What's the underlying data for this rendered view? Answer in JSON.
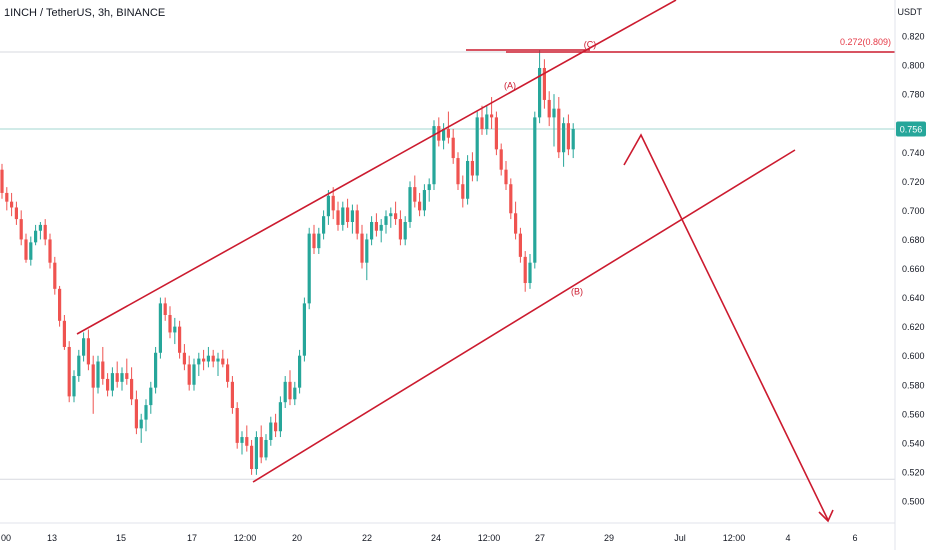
{
  "header": {
    "symbol_title": "1INCH / TetherUS, 3h, BINANCE",
    "currency": "USDT"
  },
  "colors": {
    "up": "#26a69a",
    "down": "#ef5350",
    "drawing": "#cc1b2f",
    "fib_level": "#e53946",
    "price_tag_bg": "#26a69a",
    "grid_hline": "#d7d9df"
  },
  "chart_data": {
    "type": "candlestick",
    "ylim": [
      0.49,
      0.83
    ],
    "y_ticks": [
      "0.820",
      "0.800",
      "0.780",
      "0.760",
      "0.740",
      "0.720",
      "0.700",
      "0.680",
      "0.660",
      "0.640",
      "0.620",
      "0.600",
      "0.580",
      "0.560",
      "0.540",
      "0.520",
      "0.500"
    ],
    "x_ticks": [
      "00",
      "13",
      "15",
      "17",
      "12:00",
      "20",
      "22",
      "24",
      "12:00",
      "27",
      "29",
      "Jul",
      "12:00",
      "4",
      "6"
    ],
    "last_price": 0.756,
    "last_price_label": "0.756",
    "fib_level_label": "0.272(0.809)",
    "fib_level_value": 0.809,
    "support_level_value": 0.515,
    "wave_labels": [
      {
        "text": "(A)",
        "value": 0.784
      },
      {
        "text": "(B)",
        "value": 0.642
      },
      {
        "text": "(C)",
        "value": 0.812
      }
    ],
    "ohlc": [
      [
        0.728,
        0.732,
        0.708,
        0.712
      ],
      [
        0.712,
        0.716,
        0.7,
        0.706
      ],
      [
        0.706,
        0.712,
        0.696,
        0.702
      ],
      [
        0.702,
        0.706,
        0.69,
        0.694
      ],
      [
        0.694,
        0.7,
        0.676,
        0.68
      ],
      [
        0.68,
        0.684,
        0.664,
        0.666
      ],
      [
        0.666,
        0.682,
        0.662,
        0.678
      ],
      [
        0.678,
        0.69,
        0.676,
        0.686
      ],
      [
        0.686,
        0.692,
        0.68,
        0.69
      ],
      [
        0.69,
        0.694,
        0.676,
        0.68
      ],
      [
        0.68,
        0.684,
        0.66,
        0.664
      ],
      [
        0.664,
        0.668,
        0.642,
        0.646
      ],
      [
        0.646,
        0.648,
        0.62,
        0.624
      ],
      [
        0.624,
        0.628,
        0.604,
        0.606
      ],
      [
        0.606,
        0.61,
        0.568,
        0.572
      ],
      [
        0.572,
        0.59,
        0.568,
        0.586
      ],
      [
        0.586,
        0.604,
        0.582,
        0.6
      ],
      [
        0.6,
        0.616,
        0.596,
        0.612
      ],
      [
        0.612,
        0.618,
        0.59,
        0.594
      ],
      [
        0.594,
        0.6,
        0.56,
        0.578
      ],
      [
        0.578,
        0.6,
        0.574,
        0.596
      ],
      [
        0.596,
        0.606,
        0.58,
        0.584
      ],
      [
        0.584,
        0.588,
        0.572,
        0.576
      ],
      [
        0.576,
        0.592,
        0.572,
        0.588
      ],
      [
        0.588,
        0.596,
        0.578,
        0.582
      ],
      [
        0.582,
        0.592,
        0.576,
        0.588
      ],
      [
        0.588,
        0.598,
        0.58,
        0.584
      ],
      [
        0.584,
        0.592,
        0.566,
        0.57
      ],
      [
        0.57,
        0.576,
        0.546,
        0.55
      ],
      [
        0.55,
        0.56,
        0.54,
        0.556
      ],
      [
        0.556,
        0.57,
        0.548,
        0.566
      ],
      [
        0.566,
        0.582,
        0.56,
        0.578
      ],
      [
        0.578,
        0.606,
        0.574,
        0.602
      ],
      [
        0.602,
        0.64,
        0.598,
        0.636
      ],
      [
        0.636,
        0.64,
        0.624,
        0.628
      ],
      [
        0.628,
        0.634,
        0.612,
        0.616
      ],
      [
        0.616,
        0.626,
        0.608,
        0.62
      ],
      [
        0.62,
        0.624,
        0.598,
        0.602
      ],
      [
        0.602,
        0.608,
        0.59,
        0.594
      ],
      [
        0.594,
        0.6,
        0.576,
        0.58
      ],
      [
        0.58,
        0.598,
        0.576,
        0.594
      ],
      [
        0.594,
        0.602,
        0.586,
        0.598
      ],
      [
        0.598,
        0.604,
        0.59,
        0.596
      ],
      [
        0.596,
        0.606,
        0.592,
        0.6
      ],
      [
        0.6,
        0.604,
        0.592,
        0.596
      ],
      [
        0.596,
        0.602,
        0.586,
        0.598
      ],
      [
        0.598,
        0.604,
        0.592,
        0.594
      ],
      [
        0.594,
        0.598,
        0.578,
        0.582
      ],
      [
        0.582,
        0.586,
        0.56,
        0.564
      ],
      [
        0.564,
        0.568,
        0.536,
        0.54
      ],
      [
        0.54,
        0.548,
        0.532,
        0.544
      ],
      [
        0.544,
        0.552,
        0.534,
        0.538
      ],
      [
        0.538,
        0.542,
        0.518,
        0.522
      ],
      [
        0.522,
        0.548,
        0.518,
        0.544
      ],
      [
        0.544,
        0.552,
        0.526,
        0.53
      ],
      [
        0.53,
        0.546,
        0.528,
        0.542
      ],
      [
        0.542,
        0.558,
        0.538,
        0.554
      ],
      [
        0.554,
        0.56,
        0.544,
        0.548
      ],
      [
        0.548,
        0.572,
        0.544,
        0.568
      ],
      [
        0.568,
        0.586,
        0.564,
        0.582
      ],
      [
        0.582,
        0.59,
        0.566,
        0.57
      ],
      [
        0.57,
        0.582,
        0.566,
        0.578
      ],
      [
        0.578,
        0.604,
        0.574,
        0.6
      ],
      [
        0.6,
        0.64,
        0.596,
        0.636
      ],
      [
        0.636,
        0.688,
        0.632,
        0.684
      ],
      [
        0.684,
        0.69,
        0.67,
        0.674
      ],
      [
        0.674,
        0.688,
        0.67,
        0.684
      ],
      [
        0.684,
        0.7,
        0.68,
        0.696
      ],
      [
        0.696,
        0.714,
        0.69,
        0.71
      ],
      [
        0.71,
        0.716,
        0.694,
        0.7
      ],
      [
        0.7,
        0.706,
        0.686,
        0.69
      ],
      [
        0.69,
        0.706,
        0.686,
        0.702
      ],
      [
        0.702,
        0.708,
        0.688,
        0.692
      ],
      [
        0.692,
        0.704,
        0.684,
        0.7
      ],
      [
        0.7,
        0.704,
        0.68,
        0.684
      ],
      [
        0.684,
        0.69,
        0.66,
        0.664
      ],
      [
        0.664,
        0.684,
        0.652,
        0.68
      ],
      [
        0.68,
        0.696,
        0.676,
        0.692
      ],
      [
        0.692,
        0.698,
        0.682,
        0.686
      ],
      [
        0.686,
        0.694,
        0.678,
        0.69
      ],
      [
        0.69,
        0.7,
        0.684,
        0.696
      ],
      [
        0.696,
        0.702,
        0.688,
        0.698
      ],
      [
        0.698,
        0.706,
        0.69,
        0.694
      ],
      [
        0.694,
        0.7,
        0.676,
        0.68
      ],
      [
        0.68,
        0.696,
        0.676,
        0.692
      ],
      [
        0.692,
        0.72,
        0.688,
        0.716
      ],
      [
        0.716,
        0.724,
        0.702,
        0.706
      ],
      [
        0.706,
        0.712,
        0.696,
        0.7
      ],
      [
        0.7,
        0.718,
        0.696,
        0.714
      ],
      [
        0.714,
        0.722,
        0.706,
        0.718
      ],
      [
        0.718,
        0.762,
        0.714,
        0.758
      ],
      [
        0.758,
        0.764,
        0.744,
        0.748
      ],
      [
        0.748,
        0.76,
        0.742,
        0.756
      ],
      [
        0.756,
        0.768,
        0.746,
        0.75
      ],
      [
        0.75,
        0.756,
        0.732,
        0.736
      ],
      [
        0.736,
        0.74,
        0.714,
        0.718
      ],
      [
        0.718,
        0.724,
        0.702,
        0.708
      ],
      [
        0.708,
        0.738,
        0.704,
        0.734
      ],
      [
        0.734,
        0.74,
        0.72,
        0.724
      ],
      [
        0.724,
        0.768,
        0.72,
        0.764
      ],
      [
        0.764,
        0.772,
        0.752,
        0.756
      ],
      [
        0.756,
        0.772,
        0.752,
        0.766
      ],
      [
        0.766,
        0.778,
        0.756,
        0.764
      ],
      [
        0.764,
        0.768,
        0.738,
        0.742
      ],
      [
        0.742,
        0.746,
        0.724,
        0.728
      ],
      [
        0.728,
        0.734,
        0.714,
        0.718
      ],
      [
        0.718,
        0.722,
        0.694,
        0.698
      ],
      [
        0.698,
        0.706,
        0.68,
        0.684
      ],
      [
        0.684,
        0.688,
        0.664,
        0.668
      ],
      [
        0.668,
        0.672,
        0.644,
        0.65
      ],
      [
        0.65,
        0.67,
        0.646,
        0.664
      ],
      [
        0.664,
        0.768,
        0.66,
        0.764
      ],
      [
        0.764,
        0.81,
        0.76,
        0.798
      ],
      [
        0.798,
        0.804,
        0.77,
        0.776
      ],
      [
        0.776,
        0.782,
        0.758,
        0.764
      ],
      [
        0.764,
        0.78,
        0.744,
        0.77
      ],
      [
        0.77,
        0.778,
        0.736,
        0.74
      ],
      [
        0.74,
        0.764,
        0.73,
        0.76
      ],
      [
        0.76,
        0.766,
        0.738,
        0.742
      ],
      [
        0.742,
        0.76,
        0.736,
        0.756
      ]
    ]
  }
}
